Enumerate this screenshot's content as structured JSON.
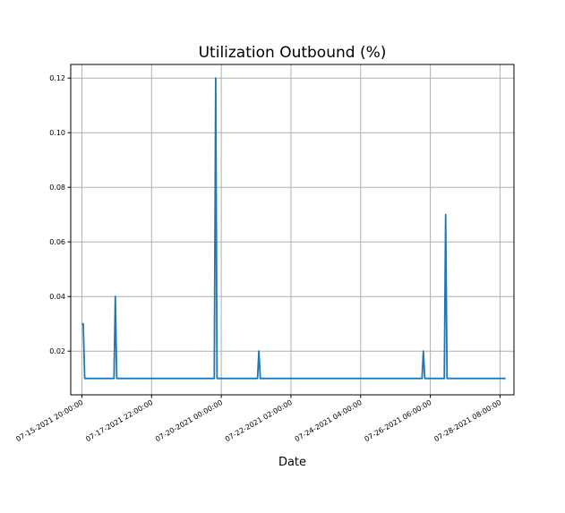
{
  "chart_data": {
    "type": "line",
    "title": "Utilization Outbound (%)",
    "xlabel": "Date",
    "ylabel": "",
    "grid": true,
    "colors": {
      "series": "#1f77b4",
      "grid": "#b0b0b0"
    },
    "x_axis": {
      "type": "date",
      "range": [
        "2021-07-15T12:00",
        "2021-07-28T18:00"
      ],
      "ticks": [
        {
          "value": "2021-07-15T20:00",
          "label": "07-15-2021 20:00:00"
        },
        {
          "value": "2021-07-17T22:00",
          "label": "07-17-2021 22:00:00"
        },
        {
          "value": "2021-07-20T00:00",
          "label": "07-20-2021 00:00:00"
        },
        {
          "value": "2021-07-22T02:00",
          "label": "07-22-2021 02:00:00"
        },
        {
          "value": "2021-07-24T04:00",
          "label": "07-24-2021 04:00:00"
        },
        {
          "value": "2021-07-26T06:00",
          "label": "07-26-2021 06:00:00"
        },
        {
          "value": "2021-07-28T08:00",
          "label": "07-28-2021 08:00:00"
        }
      ]
    },
    "y_axis": {
      "ylim": [
        0.004,
        0.125
      ],
      "ticks": [
        0.02,
        0.04,
        0.06,
        0.08,
        0.1,
        0.12
      ],
      "tick_labels": [
        "0.02",
        "0.04",
        "0.06",
        "0.08",
        "0.10",
        "0.12"
      ]
    },
    "series": [
      {
        "x": [
          "2021-07-15T20:00",
          "2021-07-15T21:00",
          "2021-07-15T22:00",
          "2021-07-16T19:00",
          "2021-07-16T20:00",
          "2021-07-16T21:00",
          "2021-07-19T19:00",
          "2021-07-19T20:00",
          "2021-07-19T21:00",
          "2021-07-21T02:00",
          "2021-07-21T03:00",
          "2021-07-21T04:00",
          "2021-07-26T00:00",
          "2021-07-26T01:00",
          "2021-07-26T02:00",
          "2021-07-26T16:00",
          "2021-07-26T17:00",
          "2021-07-26T18:00",
          "2021-07-28T12:00"
        ],
        "y": [
          0.03,
          0.03,
          0.01,
          0.01,
          0.04,
          0.01,
          0.01,
          0.12,
          0.01,
          0.01,
          0.02,
          0.01,
          0.01,
          0.02,
          0.01,
          0.01,
          0.07,
          0.01,
          0.01
        ]
      }
    ]
  }
}
